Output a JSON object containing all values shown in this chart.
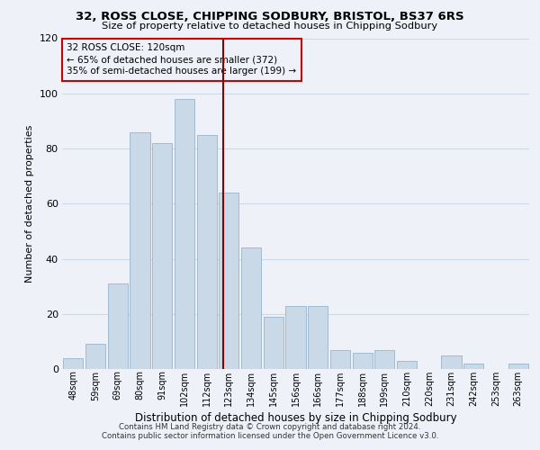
{
  "title1": "32, ROSS CLOSE, CHIPPING SODBURY, BRISTOL, BS37 6RS",
  "title2": "Size of property relative to detached houses in Chipping Sodbury",
  "xlabel": "Distribution of detached houses by size in Chipping Sodbury",
  "ylabel": "Number of detached properties",
  "footnote1": "Contains HM Land Registry data © Crown copyright and database right 2024.",
  "footnote2": "Contains public sector information licensed under the Open Government Licence v3.0.",
  "bar_labels": [
    "48sqm",
    "59sqm",
    "69sqm",
    "80sqm",
    "91sqm",
    "102sqm",
    "112sqm",
    "123sqm",
    "134sqm",
    "145sqm",
    "156sqm",
    "166sqm",
    "177sqm",
    "188sqm",
    "199sqm",
    "210sqm",
    "220sqm",
    "231sqm",
    "242sqm",
    "253sqm",
    "263sqm"
  ],
  "bar_values": [
    4,
    9,
    31,
    86,
    82,
    98,
    85,
    64,
    44,
    19,
    23,
    23,
    7,
    6,
    7,
    3,
    0,
    5,
    2,
    0,
    2
  ],
  "bar_color": "#c9d9e8",
  "bar_edge_color": "#9ab4cc",
  "grid_color": "#ccd8e8",
  "annotation_line_color": "#8b0000",
  "annotation_box_text": "32 ROSS CLOSE: 120sqm\n← 65% of detached houses are smaller (372)\n35% of semi-detached houses are larger (199) →",
  "annotation_box_color": "#cc0000",
  "ylim": [
    0,
    120
  ],
  "yticks": [
    0,
    20,
    40,
    60,
    80,
    100,
    120
  ],
  "bg_color": "#eef2f8"
}
